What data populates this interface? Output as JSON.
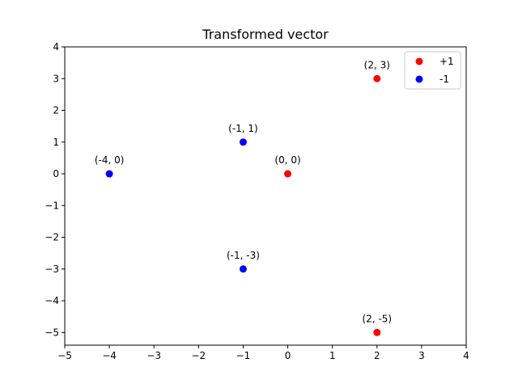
{
  "chart_data": {
    "type": "scatter",
    "title": "Transformed vector",
    "xlabel": "",
    "ylabel": "",
    "xlim": [
      -5,
      4
    ],
    "ylim": [
      -5.4,
      4
    ],
    "xticks": [
      -5,
      -4,
      -3,
      -2,
      -1,
      0,
      1,
      2,
      3,
      4
    ],
    "yticks": [
      -5,
      -4,
      -3,
      -2,
      -1,
      0,
      1,
      2,
      3,
      4
    ],
    "grid": false,
    "legend_position": "top-right",
    "series": [
      {
        "name": "+1",
        "color": "#ff0000",
        "points": [
          {
            "x": 2,
            "y": 3,
            "label": "(2, 3)"
          },
          {
            "x": 0,
            "y": 0,
            "label": "(0, 0)"
          },
          {
            "x": 2,
            "y": -5,
            "label": "(2, -5)"
          }
        ]
      },
      {
        "name": "-1",
        "color": "#0000ff",
        "points": [
          {
            "x": -1,
            "y": 1,
            "label": "(-1, 1)"
          },
          {
            "x": -4,
            "y": 0,
            "label": "(-4, 0)"
          },
          {
            "x": -1,
            "y": -3,
            "label": "(-1, -3)"
          }
        ]
      }
    ]
  }
}
